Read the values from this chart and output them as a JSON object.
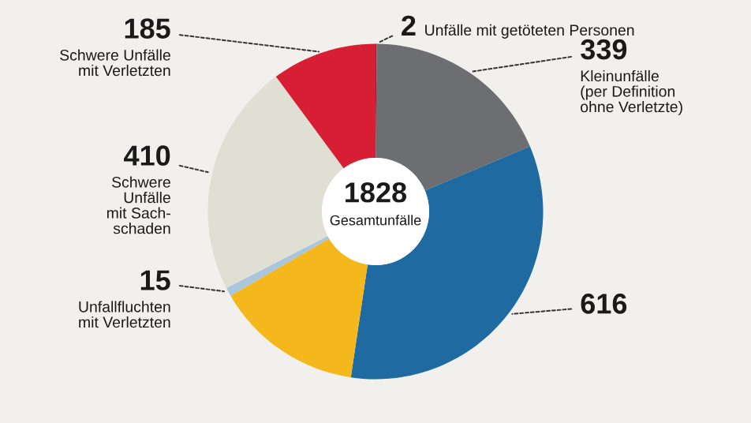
{
  "chart_data": {
    "type": "donut",
    "categories": [
      "Unfälle mit getöteten Personen",
      "Kleinunfälle\n(per Definition\nohne Verletzte)",
      null,
      null,
      "Unfallfluchten\nmit Verletzten",
      "Schwere\nUnfälle\nmit Sach-\nschaden",
      "Schwere Unfälle\nmit Verletzten"
    ],
    "values": [
      2,
      339,
      616,
      261,
      15,
      410,
      185
    ],
    "value_labels": [
      "2",
      "339",
      "616",
      null,
      "15",
      "410",
      "185"
    ],
    "colors": [
      "#9a1b2f",
      "#6d6e71",
      "#1f6aa0",
      "#f5b81c",
      "#a9c6dc",
      "#e0dfd3",
      "#d81e34"
    ],
    "annotations": [
      "1828",
      "Gesamtunfälle"
    ]
  }
}
